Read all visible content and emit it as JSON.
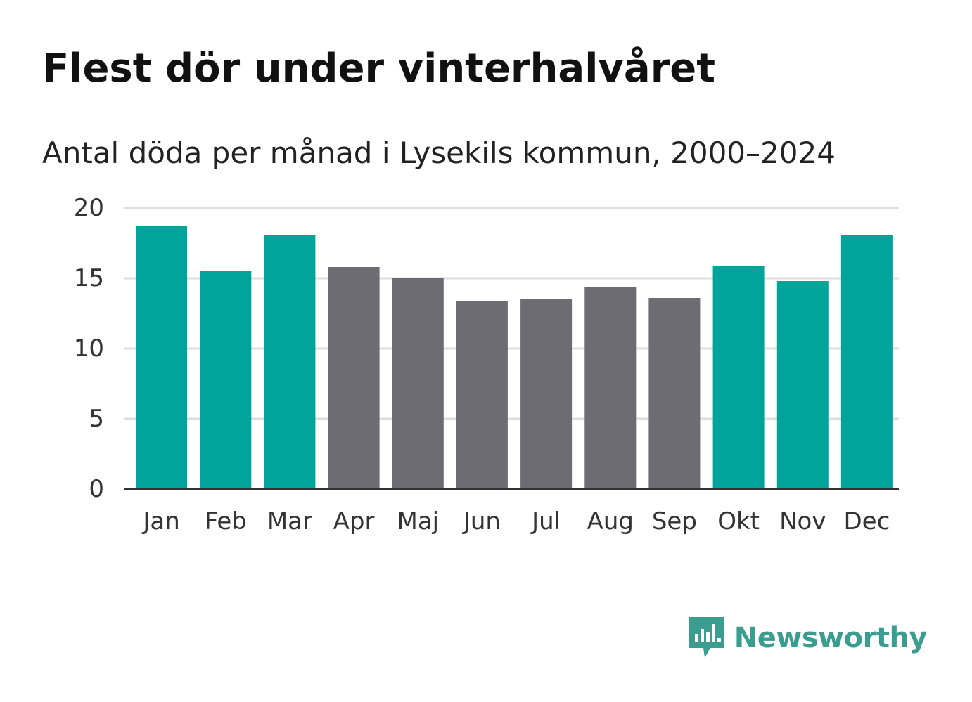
{
  "header": {
    "title": "Flest dör under vinterhalvåret",
    "subtitle": "Antal döda per månad i Lysekils kommun, 2000–2024"
  },
  "brand": {
    "name": "Newsworthy",
    "icon": "newsworthy-logo-icon",
    "color": "#3a9d8f"
  },
  "colors": {
    "winter": "#00a49a",
    "summer": "#6d6c72",
    "grid": "#dddddd",
    "axis": "#333333"
  },
  "chart_data": {
    "type": "bar",
    "title": "Flest dör under vinterhalvåret",
    "subtitle": "Antal döda per månad i Lysekils kommun, 2000–2024",
    "xlabel": "",
    "ylabel": "",
    "ylim": [
      0,
      20
    ],
    "yticks": [
      0,
      5,
      10,
      15,
      20
    ],
    "grid": true,
    "categories": [
      "Jan",
      "Feb",
      "Mar",
      "Apr",
      "Maj",
      "Jun",
      "Jul",
      "Aug",
      "Sep",
      "Okt",
      "Nov",
      "Dec"
    ],
    "values": [
      18.7,
      15.55,
      18.1,
      15.8,
      15.05,
      13.35,
      13.5,
      14.4,
      13.6,
      15.9,
      14.8,
      18.05
    ],
    "highlight": [
      true,
      true,
      true,
      false,
      false,
      false,
      false,
      false,
      false,
      true,
      true,
      true
    ]
  }
}
